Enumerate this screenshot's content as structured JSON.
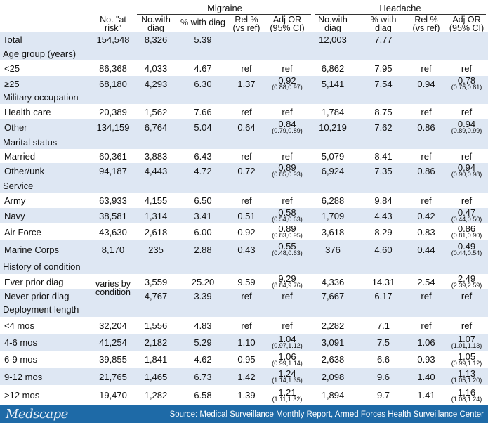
{
  "groups": {
    "migraine": "Migraine",
    "headache": "Headache"
  },
  "headers": {
    "at_risk": [
      "No. \"at",
      "risk\""
    ],
    "m_diag": [
      "No.with",
      "diag"
    ],
    "m_pct": [
      "% with diag"
    ],
    "m_rel": [
      "Rel %",
      "(vs ref)"
    ],
    "m_or": [
      "Adj OR",
      "(95% CI)"
    ],
    "h_diag": [
      "No.with",
      "diag"
    ],
    "h_pct": [
      "% with",
      "diag"
    ],
    "h_rel": [
      "Rel %",
      "(vs ref)"
    ],
    "h_or": [
      "Adj OR",
      "(95% CI)"
    ]
  },
  "rows": [
    {
      "kind": "data",
      "label": "Total",
      "at_risk": "154,548",
      "m_diag": "8,326",
      "m_pct": "5.39",
      "m_rel": "",
      "m_or": "",
      "m_ci": "",
      "h_diag": "12,003",
      "h_pct": "7.77",
      "h_rel": "",
      "h_or": "",
      "h_ci": ""
    },
    {
      "kind": "section",
      "label": "Age group (years)"
    },
    {
      "kind": "data",
      "label": "<25",
      "at_risk": "86,368",
      "m_diag": "4,033",
      "m_pct": "4.67",
      "m_rel": "ref",
      "m_or": "ref",
      "m_ci": "",
      "h_diag": "6,862",
      "h_pct": "7.95",
      "h_rel": "ref",
      "h_or": "ref",
      "h_ci": ""
    },
    {
      "kind": "data",
      "label": "≥25",
      "at_risk": "68,180",
      "m_diag": "4,293",
      "m_pct": "6.30",
      "m_rel": "1.37",
      "m_or": "0.92",
      "m_ci": "(0.88,0.97)",
      "h_diag": "5,141",
      "h_pct": "7.54",
      "h_rel": "0.94",
      "h_or": "0.78",
      "h_ci": "(0.75,0.81)"
    },
    {
      "kind": "section",
      "label": "Military occupation"
    },
    {
      "kind": "data",
      "label": "Health care",
      "at_risk": "20,389",
      "m_diag": "1,562",
      "m_pct": "7.66",
      "m_rel": "ref",
      "m_or": "ref",
      "m_ci": "",
      "h_diag": "1,784",
      "h_pct": "8.75",
      "h_rel": "ref",
      "h_or": "ref",
      "h_ci": ""
    },
    {
      "kind": "data",
      "label": "Other",
      "at_risk": "134,159",
      "m_diag": "6,764",
      "m_pct": "5.04",
      "m_rel": "0.64",
      "m_or": "0.84",
      "m_ci": "(0.79,0.89)",
      "h_diag": "10,219",
      "h_pct": "7.62",
      "h_rel": "0.86",
      "h_or": "0.94",
      "h_ci": "(0.89,0.99)"
    },
    {
      "kind": "section",
      "label": "Marital status"
    },
    {
      "kind": "data",
      "label": "Married",
      "at_risk": "60,361",
      "m_diag": "3,883",
      "m_pct": "6.43",
      "m_rel": "ref",
      "m_or": "ref",
      "m_ci": "",
      "h_diag": "5,079",
      "h_pct": "8.41",
      "h_rel": "ref",
      "h_or": "ref",
      "h_ci": ""
    },
    {
      "kind": "data",
      "label": "Other/unk",
      "at_risk": "94,187",
      "m_diag": "4,443",
      "m_pct": "4.72",
      "m_rel": "0.72",
      "m_or": "0.89",
      "m_ci": "(0.85,0.93)",
      "h_diag": "6,924",
      "h_pct": "7.35",
      "h_rel": "0.86",
      "h_or": "0.94",
      "h_ci": "(0.90,0.98)"
    },
    {
      "kind": "section",
      "label": "Service"
    },
    {
      "kind": "data",
      "label": "Army",
      "at_risk": "63,933",
      "m_diag": "4,155",
      "m_pct": "6.50",
      "m_rel": "ref",
      "m_or": "ref",
      "m_ci": "",
      "h_diag": "6,288",
      "h_pct": "9.84",
      "h_rel": "ref",
      "h_or": "ref",
      "h_ci": ""
    },
    {
      "kind": "data",
      "label": "Navy",
      "at_risk": "38,581",
      "m_diag": "1,314",
      "m_pct": "3.41",
      "m_rel": "0.51",
      "m_or": "0.58",
      "m_ci": "(0.54,0.63)",
      "h_diag": "1,709",
      "h_pct": "4.43",
      "h_rel": "0.42",
      "h_or": "0.47",
      "h_ci": "(0.44,0.50)"
    },
    {
      "kind": "data",
      "label": "Air Force",
      "at_risk": "43,630",
      "m_diag": "2,618",
      "m_pct": "6.00",
      "m_rel": "0.92",
      "m_or": "0.89",
      "m_ci": "(0.83,0.95)",
      "h_diag": "3,618",
      "h_pct": "8.29",
      "h_rel": "0.83",
      "h_or": "0.86",
      "h_ci": "(0.81,0.90)"
    },
    {
      "kind": "data",
      "label": "Marine Corps",
      "at_risk": "8,170",
      "m_diag": "235",
      "m_pct": "2.88",
      "m_rel": "0.43",
      "m_or": "0.55",
      "m_ci": "(0.48,0.63)",
      "h_diag": "376",
      "h_pct": "4.60",
      "h_rel": "0.44",
      "h_or": "0.49",
      "h_ci": "(0.44,0.54)"
    },
    {
      "kind": "section",
      "label": "History of condition"
    },
    {
      "kind": "data",
      "label": "Ever prior diag",
      "at_risk": "",
      "m_diag": "3,559",
      "m_pct": "25.20",
      "m_rel": "9.59",
      "m_or": "9.29",
      "m_ci": "(8.84,9.76)",
      "h_diag": "4,336",
      "h_pct": "14.31",
      "h_rel": "2.54",
      "h_or": "2.49",
      "h_ci": "(2.39,2.59)"
    },
    {
      "kind": "data",
      "label": "Never prior diag",
      "at_risk": "",
      "m_diag": "4,767",
      "m_pct": "3.39",
      "m_rel": "ref",
      "m_or": "ref",
      "m_ci": "",
      "h_diag": "7,667",
      "h_pct": "6.17",
      "h_rel": "ref",
      "h_or": "ref",
      "h_ci": ""
    },
    {
      "kind": "section",
      "label": "Deployment length"
    },
    {
      "kind": "data",
      "label": "<4 mos",
      "at_risk": "32,204",
      "m_diag": "1,556",
      "m_pct": "4.83",
      "m_rel": "ref",
      "m_or": "ref",
      "m_ci": "",
      "h_diag": "2,282",
      "h_pct": "7.1",
      "h_rel": "ref",
      "h_or": "ref",
      "h_ci": ""
    },
    {
      "kind": "data",
      "label": "4-6 mos",
      "at_risk": "41,254",
      "m_diag": "2,182",
      "m_pct": "5.29",
      "m_rel": "1.10",
      "m_or": "1.04",
      "m_ci": "(0.97,1.12)",
      "h_diag": "3,091",
      "h_pct": "7.5",
      "h_rel": "1.06",
      "h_or": "1.07",
      "h_ci": "(1.01,1.13)"
    },
    {
      "kind": "data",
      "label": "6-9 mos",
      "at_risk": "39,855",
      "m_diag": "1,841",
      "m_pct": "4.62",
      "m_rel": "0.95",
      "m_or": "1.06",
      "m_ci": "(0.99,1.14)",
      "h_diag": "2,638",
      "h_pct": "6.6",
      "h_rel": "0.93",
      "h_or": "1.05",
      "h_ci": "(0.99,1.12)"
    },
    {
      "kind": "data",
      "label": "9-12 mos",
      "at_risk": "21,765",
      "m_diag": "1,465",
      "m_pct": "6.73",
      "m_rel": "1.42",
      "m_or": "1.24",
      "m_ci": "(1.14,1.35)",
      "h_diag": "2,098",
      "h_pct": "9.6",
      "h_rel": "1.40",
      "h_or": "1.13",
      "h_ci": "(1.05,1.20)"
    },
    {
      "kind": "data",
      "label": ">12 mos",
      "at_risk": "19,470",
      "m_diag": "1,282",
      "m_pct": "6.58",
      "m_rel": "1.39",
      "m_or": "1.21",
      "m_ci": "(1.11,1.32)",
      "h_diag": "1,894",
      "h_pct": "9.7",
      "h_rel": "1.41",
      "h_or": "1.16",
      "h_ci": "(1.08,1.24)"
    }
  ],
  "merged_note": [
    "varies by",
    "condition"
  ],
  "footer": {
    "logo": "Medscape",
    "source": "Source: Medical Surveillance Monthly Report, Armed Forces Health Surveillance Center"
  }
}
